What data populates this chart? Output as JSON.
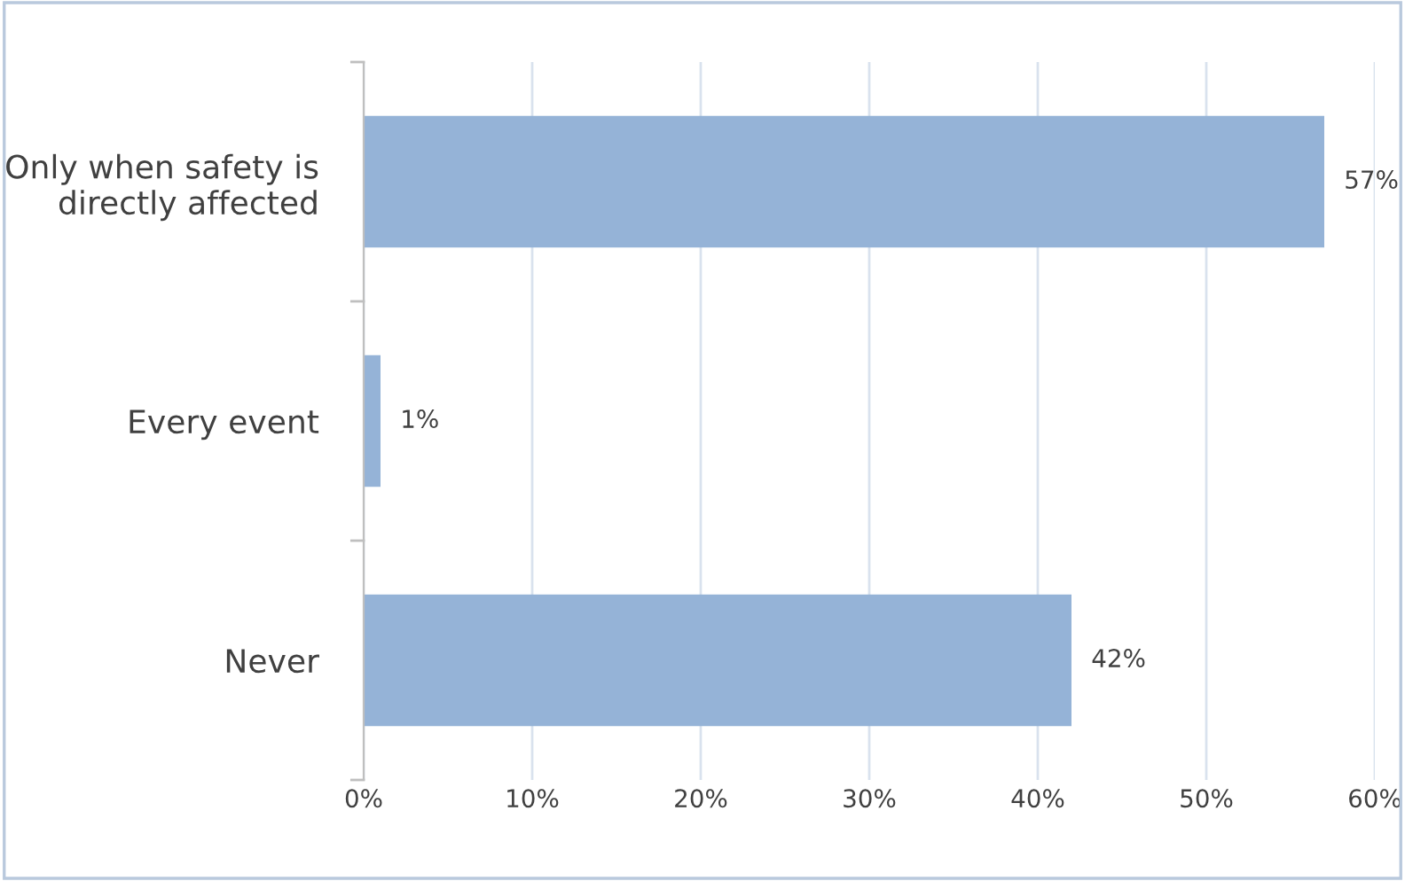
{
  "chart_data": {
    "type": "bar",
    "orientation": "horizontal",
    "categories": [
      "Only when safety is\ndirectly affected",
      "Every event",
      "Never"
    ],
    "values": [
      57,
      1,
      42
    ],
    "value_labels": [
      "57%",
      "1%",
      "42%"
    ],
    "color": "#95b3d7",
    "xlim": [
      0,
      60
    ],
    "xticks": [
      {
        "value": 0,
        "label": "0%"
      },
      {
        "value": 10,
        "label": "10%"
      },
      {
        "value": 20,
        "label": "20%"
      },
      {
        "value": 30,
        "label": "30%"
      },
      {
        "value": 40,
        "label": "40%"
      },
      {
        "value": 50,
        "label": "50%"
      },
      {
        "value": 60,
        "label": "60%"
      }
    ],
    "grid": "x"
  }
}
